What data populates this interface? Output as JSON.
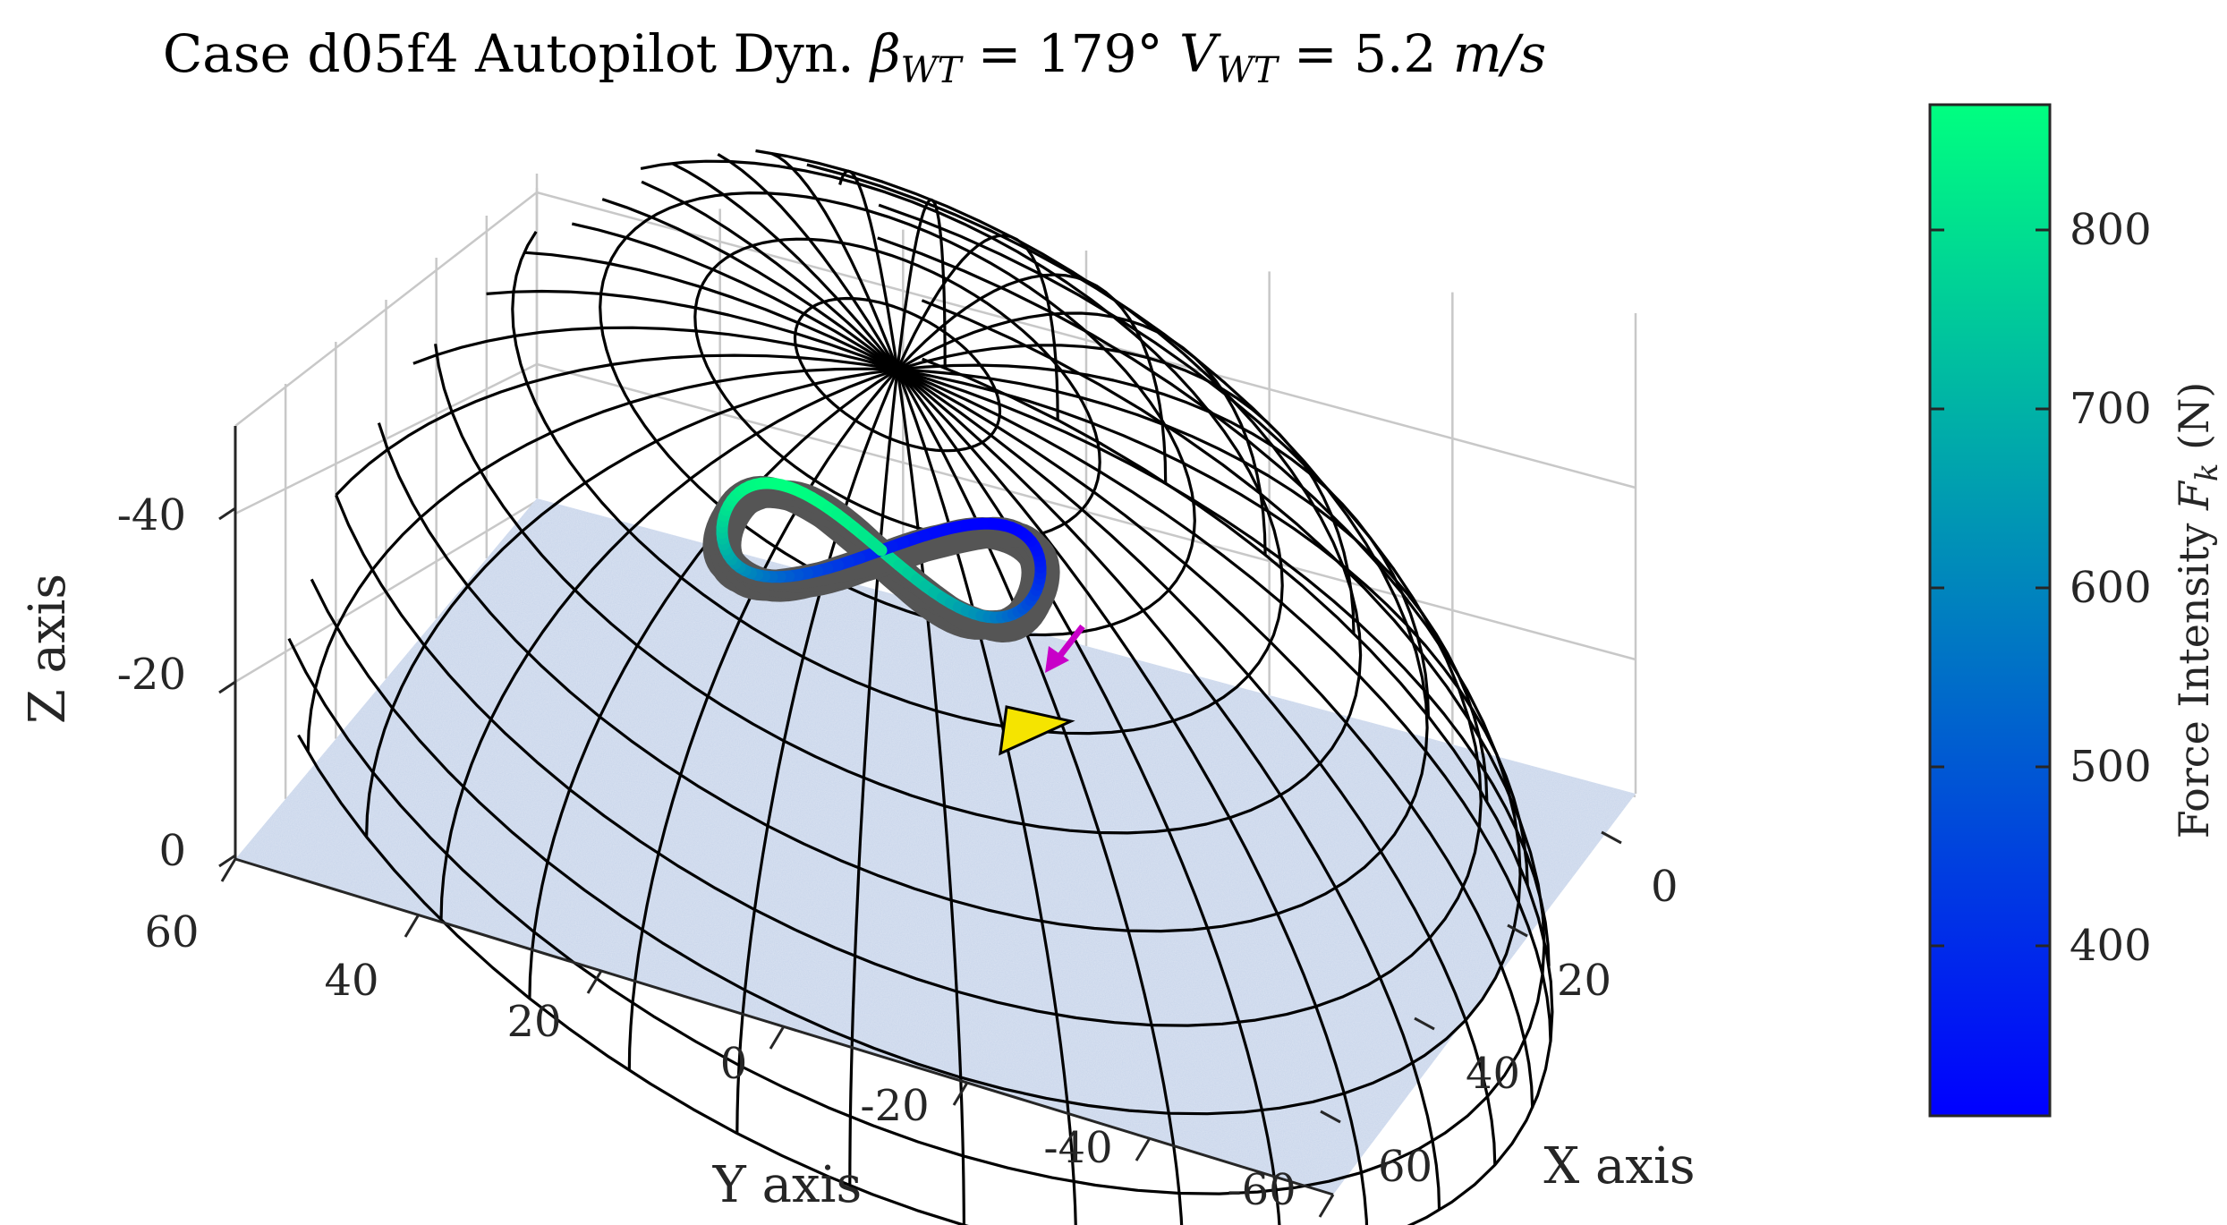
{
  "chart_data": {
    "type": "3d-line",
    "title": {
      "prefix": "Case d05f4 Autopilot Dyn. ",
      "beta_symbol": "β",
      "beta_subscript": "WT",
      "beta_value": " = 179°  ",
      "v_symbol": "V",
      "v_subscript": "WT",
      "v_value": " = 5.2 ",
      "v_unit": "m/s"
    },
    "xlabel": "X axis",
    "ylabel": "Y axis",
    "zlabel": "Z axis",
    "x_ticks": [
      "0",
      "20",
      "40",
      "60"
    ],
    "y_ticks": [
      "60",
      "40",
      "20",
      "0",
      "-20",
      "-40",
      "-60"
    ],
    "z_ticks": [
      "-40",
      "-20",
      "0"
    ],
    "xlim": [
      -5,
      60
    ],
    "ylim": [
      -60,
      60
    ],
    "zlim": [
      -50,
      0
    ],
    "grid": true,
    "surface": {
      "shape": "hemisphere wireframe",
      "radius_m": 50,
      "line_color": "#000000"
    },
    "ground": {
      "color": "#c7d4ea",
      "texture": "water"
    },
    "trajectory": {
      "shape": "figure-eight",
      "colormap": "winter",
      "shadow_color": "#555555",
      "min_force_N": 310,
      "max_force_N": 870
    },
    "markers": [
      {
        "name": "wind arrow",
        "color": "#c800c8"
      },
      {
        "name": "ground station",
        "color": "#f5e400"
      }
    ],
    "colorbar": {
      "label_prefix": "Force Intensity ",
      "label_symbol": "F",
      "label_subscript": "k",
      "label_unit": " (N)",
      "ticks": [
        "400",
        "500",
        "600",
        "700",
        "800"
      ],
      "tick_values": [
        400,
        500,
        600,
        700,
        800
      ],
      "range": [
        305,
        870
      ],
      "color_top": "#00ff80",
      "color_bottom": "#0000ff"
    }
  }
}
